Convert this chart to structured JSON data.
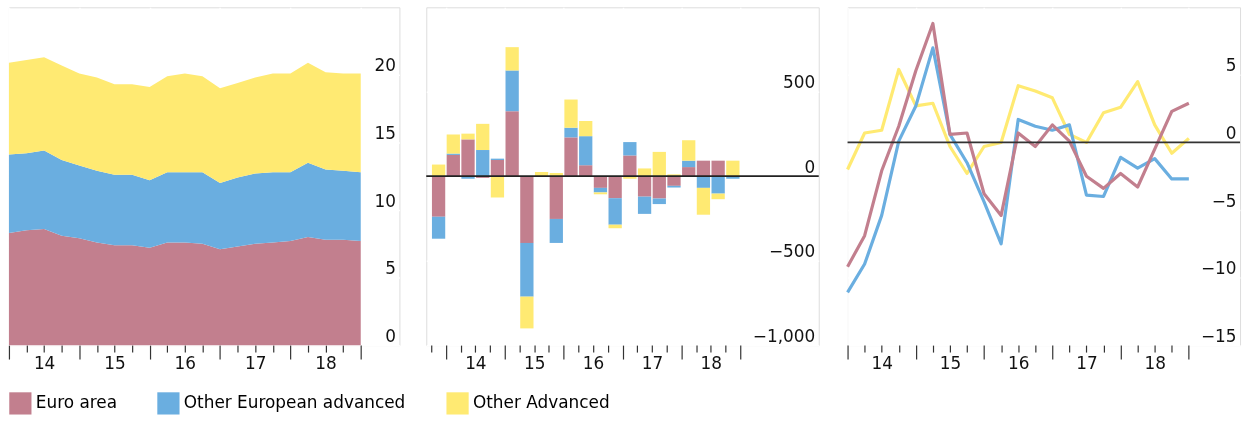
{
  "chart_data": [
    {
      "type": "area",
      "stacked": true,
      "legend": "bottom",
      "grid": true,
      "categories": [
        null,
        null,
        "14",
        null,
        null,
        null,
        "15",
        null,
        null,
        null,
        "16",
        null,
        null,
        null,
        "17",
        null,
        null,
        null,
        "18",
        null,
        null
      ],
      "series": [
        {
          "name": "Euro area",
          "color": "#c27f8e",
          "values": [
            8.3,
            8.5,
            8.6,
            8.1,
            7.9,
            7.6,
            7.4,
            7.4,
            7.2,
            7.6,
            7.6,
            7.5,
            7.1,
            7.3,
            7.5,
            7.6,
            7.7,
            8.0,
            7.8,
            7.8,
            7.7
          ]
        },
        {
          "name": "Other European advanced",
          "color": "#6aaee0",
          "values": [
            5.8,
            5.7,
            5.8,
            5.6,
            5.4,
            5.3,
            5.2,
            5.2,
            5.0,
            5.2,
            5.2,
            5.3,
            4.9,
            5.1,
            5.2,
            5.2,
            5.1,
            5.5,
            5.2,
            5.1,
            5.1
          ]
        },
        {
          "name": "Other Advanced",
          "color": "#ffea72",
          "values": [
            6.8,
            6.9,
            6.9,
            7.0,
            6.8,
            6.9,
            6.7,
            6.7,
            6.9,
            7.1,
            7.3,
            7.1,
            7.0,
            7.0,
            7.1,
            7.3,
            7.3,
            7.4,
            7.2,
            7.2,
            7.3
          ]
        }
      ],
      "ylim": [
        0,
        25
      ],
      "yticks": [
        0,
        5,
        10,
        15,
        20
      ]
    },
    {
      "type": "bar",
      "stacked": true,
      "grid": true,
      "categories": [
        null,
        null,
        "14",
        null,
        null,
        null,
        "15",
        null,
        null,
        null,
        "16",
        null,
        null,
        null,
        "17",
        null,
        null,
        null,
        "18",
        null,
        null
      ],
      "series": [
        {
          "color": "#c27f8e",
          "values": [
            -240,
            126,
            218,
            -10,
            96,
            385,
            -395,
            0,
            -253,
            230,
            65,
            -69,
            -130,
            123,
            -121,
            -132,
            -57,
            54,
            92,
            92,
            0
          ]
        },
        {
          "color": "#6aaee0",
          "values": [
            -130,
            8,
            -15,
            155,
            8,
            241,
            -318,
            0,
            -142,
            57,
            172,
            -27,
            -157,
            79,
            -102,
            -33,
            -10,
            38,
            -69,
            -103,
            -15
          ]
        },
        {
          "color": "#ffea72",
          "values": [
            69,
            113,
            34,
            155,
            -126,
            138,
            -188,
            25,
            19,
            167,
            90,
            -11,
            -21,
            -15,
            46,
            144,
            11,
            121,
            -159,
            -33,
            92
          ]
        }
      ],
      "ref_lines": [
        {
          "axis": "y",
          "value": 0,
          "color": "#222222"
        }
      ],
      "ylim": [
        -1000,
        1000
      ],
      "yticks": [
        {
          "value": -1000,
          "label": "−1,000"
        },
        {
          "value": -500,
          "label": "−500"
        },
        0,
        500
      ]
    },
    {
      "type": "line",
      "grid": true,
      "categories": [
        null,
        null,
        "14",
        null,
        null,
        null,
        "15",
        null,
        null,
        null,
        "16",
        null,
        null,
        null,
        "17",
        null,
        null,
        null,
        "18",
        null,
        null
      ],
      "series": [
        {
          "color": "#ffea72",
          "values": [
            -2.0,
            0.7,
            0.9,
            5.4,
            2.7,
            2.9,
            -0.3,
            -2.3,
            -0.3,
            0.0,
            4.2,
            3.8,
            3.3,
            0.6,
            0.0,
            2.2,
            2.6,
            4.5,
            1.3,
            -0.8,
            0.3
          ]
        },
        {
          "color": "#6aaee0",
          "values": [
            -11.1,
            -9.0,
            -5.4,
            0.1,
            2.7,
            7.0,
            0.6,
            -1.5,
            -4.4,
            -7.5,
            1.7,
            1.2,
            0.9,
            1.3,
            -3.9,
            -4.0,
            -1.1,
            -1.9,
            -1.2,
            -2.7,
            -2.7
          ]
        },
        {
          "color": "#c27f8e",
          "values": [
            -9.2,
            -6.9,
            -2.1,
            1.2,
            5.3,
            8.8,
            0.6,
            0.7,
            -3.8,
            -5.4,
            0.7,
            -0.3,
            1.3,
            0.1,
            -2.5,
            -3.4,
            -2.3,
            -3.3,
            -0.5,
            2.3,
            2.9
          ]
        }
      ],
      "ref_lines": [
        {
          "axis": "y",
          "value": 0,
          "color": "#333333"
        }
      ],
      "ylim": [
        -15,
        10
      ],
      "yticks": [
        {
          "value": -15,
          "label": "−15"
        },
        {
          "value": -10,
          "label": "−10"
        },
        {
          "value": -5,
          "label": "−5"
        },
        0,
        5
      ]
    }
  ]
}
